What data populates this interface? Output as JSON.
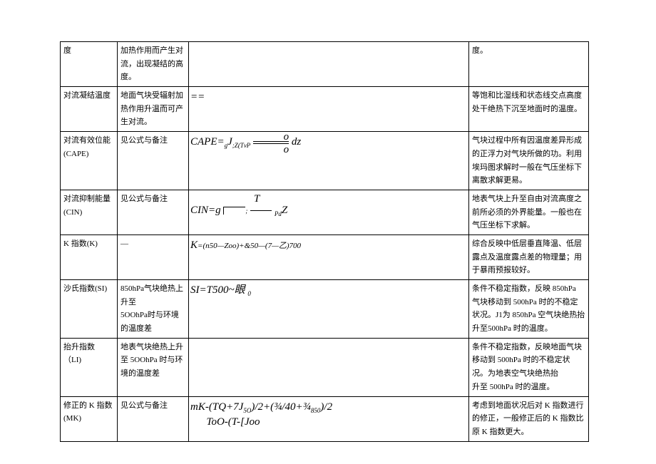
{
  "table": {
    "rows": [
      {
        "name": "度",
        "definition": "加热作用而产生对流，出现凝结的高度。",
        "formula_html": "",
        "note": "度。"
      },
      {
        "name": "对流凝结温度",
        "definition": "地面气块受辐射加热作用升温而可产生对流。",
        "formula_html": "<span style='font-family:serif'>==</span>",
        "note": "等饱和比湿线和状态线交点高度处干绝热下沉至地面时的温度。"
      },
      {
        "name": "对流有效位能\n(CAPE)",
        "definition": "见公式与备注",
        "formula_html": "<i>CAPE</i>=<span class='sub'>g</span>J<span class='sub'>;Z<i>(TvP</i></span> <span class='frac-box'><span style='position:relative'><span style='position:absolute;top:-12px;left:18px'>&nbsp;</span><span class='frac-line' style='width:50px'></span><span class='frac-line' style='width:50px'></span><span style='position:absolute;top:-14px;right:0;font-style:italic'>o</span><span style='position:absolute;top:4px;right:0;font-style:italic'>o</span></span></span> <i>dz</i>",
        "note": "气块过程中所有因温度差异形成的正浮力对气块所做的功。利用埃玛图求解时一般在气压坐标下离散求解更易。"
      },
      {
        "name": "对流抑制能量\n(CIN)",
        "definition": "见公式与备注",
        "formula_html": "<span style='display:inline-block;text-align:center;line-height:1.1'><span style='display:block;margin-left:50px'><i>T</i></span><i>CIN</i>=<i>g</i> <span style='display:inline-block;width:30px;border-top:1px solid #000;border-left:1px solid #000;height:10px;vertical-align:middle'></span><span style='font-size:9px'>;</span> <span style='border-top:1px solid #000;display:inline-block;width:30px;vertical-align:middle'></span> <i class='sub'>Pd</i>Z</span>",
        "note": "地表气块上升至自由对流高度之前所必须的外界能量。一般也在气压坐标下求解。"
      },
      {
        "name": "K 指数(K)",
        "definition": "—",
        "formula_html": "<i>K</i><span class='formula-k'>=(n50—Zoo)+&amp;50—(7—乙)700</span>",
        "note": "综合反映中低层垂直降温、低层露点及温度露点差的物理量；用于暴雨预报较好。"
      },
      {
        "name": "沙氏指数(SI)",
        "definition": "850hPa气块绝热上升至\n5OOhPa时与环境的温度差",
        "formula_html": "<i>SI=T</i>500~眼 <span class='sub'>0</span>",
        "note": "条件不稳定指数，反映 850hPa 气块移动到 500hPa 时的不稳定状况。J1为 850hPa 空气块绝热抬升至500hPa 时的温度。"
      },
      {
        "name": "抬升指数\n（LI)",
        "definition": "地表气块绝热上升至 5OOhPa 时与环境的温度差",
        "formula_html": "",
        "note": "条件不稳定指数，反映地面气块移动到 500hPa 时的不稳定状\n况。为地表空气块绝热抬\n升至 500hPa 时的温度。"
      },
      {
        "name": "修正的 K 指数(MK)",
        "definition": "见公式与备注",
        "formula_html": "<i>mK</i>-(<i>T</i>Q+7<i>J</i><span class='sub'>5O</span>)/2+(¾/40+¾<span class='sub'>850</span>)/2<br>&nbsp;&nbsp;&nbsp;&nbsp;&nbsp;&nbsp;ToO-(T-[Joo",
        "note": "考虑到地面状况后对 K 指数进行的修正，一般修正后的 K 指数比原 K 指数更大。"
      }
    ]
  }
}
